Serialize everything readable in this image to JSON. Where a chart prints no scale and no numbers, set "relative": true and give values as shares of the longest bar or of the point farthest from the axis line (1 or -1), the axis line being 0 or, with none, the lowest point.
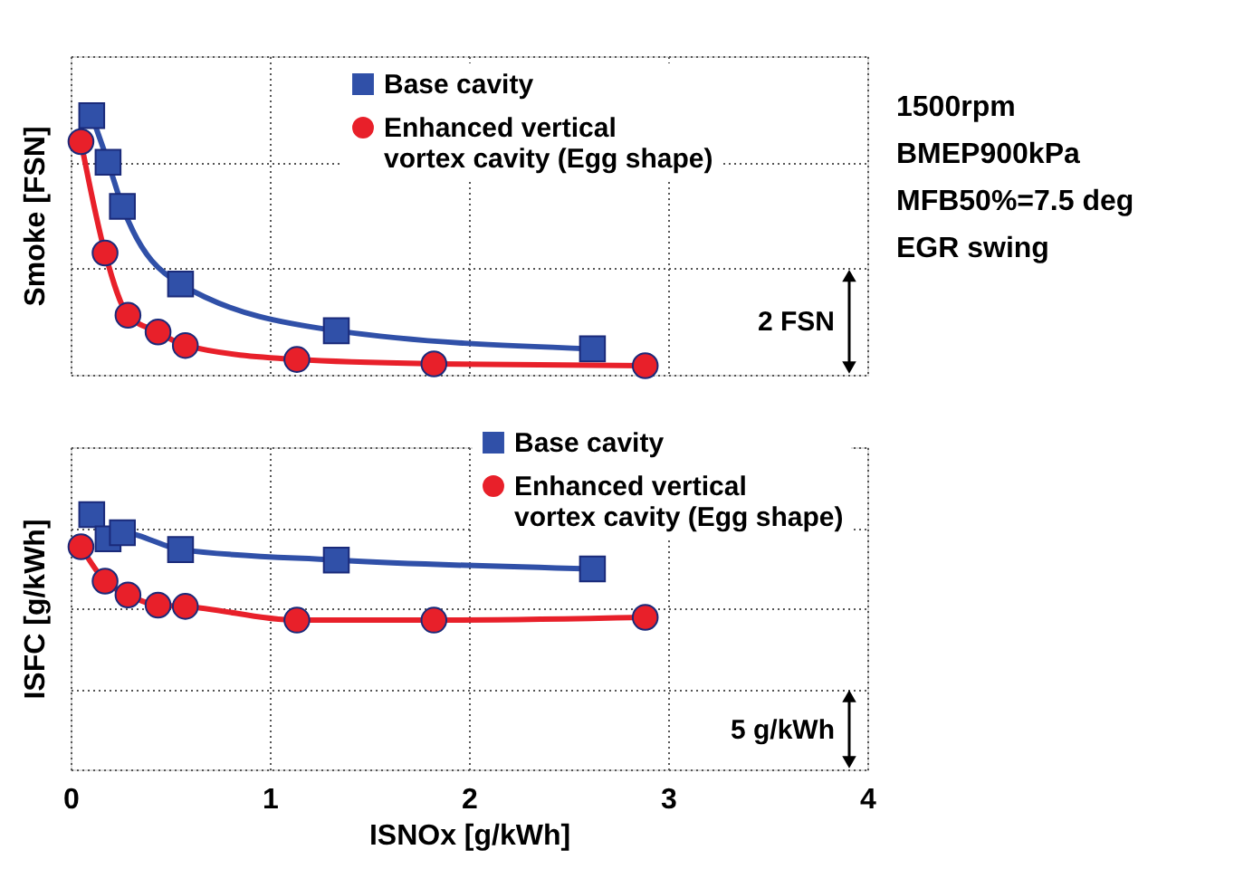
{
  "chart_data": [
    {
      "type": "line",
      "relative": true,
      "ylabel": "Smoke  [FSN]",
      "xlim": [
        0,
        4
      ],
      "xticks": [
        0,
        1,
        2,
        3,
        4
      ],
      "tick_labels": false,
      "grid": true,
      "legend": "top right",
      "line_style": "solid",
      "annotations": [
        "2 FSN",
        "1500rpm",
        "BMEP900kPa",
        "MFB50%=7.5 deg",
        "EGR swing"
      ],
      "series": [
        {
          "name": "Base cavity",
          "color": "#3050a8",
          "marker": "square",
          "x": [
            0.106,
            0.188,
            0.26,
            0.552,
            1.334,
            2.62
          ],
          "values": [
            1,
            0.82,
            0.65,
            0.35,
            0.17,
            0.1
          ]
        },
        {
          "name": "Enhanced vertical\nvortex cavity (Egg shape)",
          "color": "#e8202a",
          "marker": "circle",
          "x": [
            0.052,
            0.173,
            0.288,
            0.439,
            0.576,
            1.136,
            1.824,
            2.885
          ],
          "values": [
            0.9,
            0.47,
            0.23,
            0.165,
            0.113,
            0.059,
            0.042,
            0.035
          ]
        }
      ]
    },
    {
      "type": "line",
      "relative": true,
      "ylabel": "ISFC  [g/kWh]",
      "xlabel": "ISNOx  [g/kWh]",
      "xlim": [
        0,
        4
      ],
      "xticks": [
        0,
        1,
        2,
        3,
        4
      ],
      "tick_labels": "x",
      "grid": true,
      "legend": "top right",
      "line_style": "solid",
      "annotations": [
        "5 g/kWh"
      ],
      "series": [
        {
          "name": "Base cavity",
          "color": "#3050a8",
          "marker": "square",
          "x": [
            0.106,
            0.188,
            0.26,
            0.552,
            1.334,
            2.62
          ],
          "values": [
            1,
            0.905,
            0.929,
            0.863,
            0.822,
            0.787
          ]
        },
        {
          "name": "Enhanced vertical\nvortex cavity (Egg shape)",
          "color": "#e8202a",
          "marker": "circle",
          "x": [
            0.052,
            0.173,
            0.288,
            0.439,
            0.576,
            1.136,
            1.824,
            2.885
          ],
          "values": [
            0.874,
            0.739,
            0.685,
            0.645,
            0.64,
            0.586,
            0.586,
            0.597
          ]
        }
      ]
    }
  ]
}
